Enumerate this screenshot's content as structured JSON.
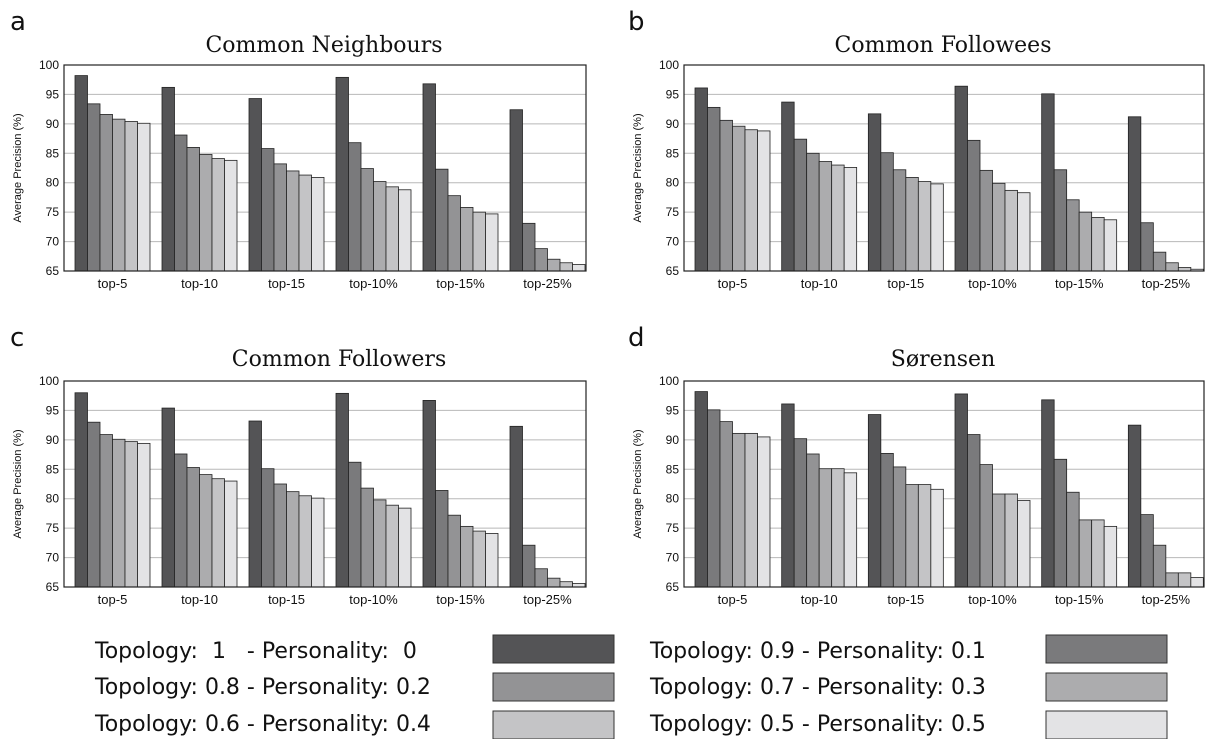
{
  "legend": [
    {
      "label": "Topology:  1   - Personality:  0",
      "color": "#545456"
    },
    {
      "label": "Topology: 0.9 - Personality: 0.1",
      "color": "#7a7a7c"
    },
    {
      "label": "Topology: 0.8 - Personality: 0.2",
      "color": "#939395"
    },
    {
      "label": "Topology: 0.7 - Personality: 0.3",
      "color": "#acacae"
    },
    {
      "label": "Topology: 0.6 - Personality: 0.4",
      "color": "#c4c4c6"
    },
    {
      "label": "Topology: 0.5 - Personality: 0.5",
      "color": "#e3e3e5"
    }
  ],
  "chart_data": [
    {
      "panel": "a",
      "type": "bar",
      "title": "Common Neighbours",
      "ylabel": "Average Precision (%)",
      "ylim": [
        65,
        100
      ],
      "yticks": [
        65,
        70,
        75,
        80,
        85,
        90,
        95,
        100
      ],
      "grid": true,
      "categories": [
        "top-5",
        "top-10",
        "top-15",
        "top-10%",
        "top-15%",
        "top-25%"
      ],
      "series": [
        {
          "name": "Topology:  1   - Personality:  0",
          "values": [
            98.2,
            96.2,
            94.3,
            97.9,
            96.8,
            92.4
          ]
        },
        {
          "name": "Topology: 0.9 - Personality: 0.1",
          "values": [
            93.4,
            88.1,
            85.8,
            86.8,
            82.3,
            73.1
          ]
        },
        {
          "name": "Topology: 0.8 - Personality: 0.2",
          "values": [
            91.6,
            86.0,
            83.2,
            82.4,
            77.8,
            68.8
          ]
        },
        {
          "name": "Topology: 0.7 - Personality: 0.3",
          "values": [
            90.8,
            84.8,
            82.0,
            80.2,
            75.8,
            67.0
          ]
        },
        {
          "name": "Topology: 0.6 - Personality: 0.4",
          "values": [
            90.4,
            84.1,
            81.3,
            79.3,
            75.0,
            66.4
          ]
        },
        {
          "name": "Topology: 0.5 - Personality: 0.5",
          "values": [
            90.1,
            83.8,
            80.9,
            78.8,
            74.7,
            66.1
          ]
        }
      ]
    },
    {
      "panel": "b",
      "type": "bar",
      "title": "Common Followees",
      "ylabel": "Average Precision (%)",
      "ylim": [
        65,
        100
      ],
      "yticks": [
        65,
        70,
        75,
        80,
        85,
        90,
        95,
        100
      ],
      "grid": true,
      "categories": [
        "top-5",
        "top-10",
        "top-15",
        "top-10%",
        "top-15%",
        "top-25%"
      ],
      "series": [
        {
          "name": "Topology:  1   - Personality:  0",
          "values": [
            96.1,
            93.7,
            91.7,
            96.4,
            95.1,
            91.2
          ]
        },
        {
          "name": "Topology: 0.9 - Personality: 0.1",
          "values": [
            92.8,
            87.4,
            85.1,
            87.2,
            82.2,
            73.2
          ]
        },
        {
          "name": "Topology: 0.8 - Personality: 0.2",
          "values": [
            90.6,
            85.0,
            82.2,
            82.1,
            77.1,
            68.2
          ]
        },
        {
          "name": "Topology: 0.7 - Personality: 0.3",
          "values": [
            89.6,
            83.6,
            80.9,
            79.9,
            75.0,
            66.4
          ]
        },
        {
          "name": "Topology: 0.6 - Personality: 0.4",
          "values": [
            89.0,
            83.0,
            80.2,
            78.7,
            74.1,
            65.6
          ]
        },
        {
          "name": "Topology: 0.5 - Personality: 0.5",
          "values": [
            88.8,
            82.6,
            79.8,
            78.3,
            73.7,
            65.3
          ]
        }
      ]
    },
    {
      "panel": "c",
      "type": "bar",
      "title": "Common Followers",
      "ylabel": "Average Precision (%)",
      "ylim": [
        65,
        100
      ],
      "yticks": [
        65,
        70,
        75,
        80,
        85,
        90,
        95,
        100
      ],
      "grid": true,
      "categories": [
        "top-5",
        "top-10",
        "top-15",
        "top-10%",
        "top-15%",
        "top-25%"
      ],
      "series": [
        {
          "name": "Topology:  1   - Personality:  0",
          "values": [
            98.0,
            95.4,
            93.2,
            97.9,
            96.7,
            92.3
          ]
        },
        {
          "name": "Topology: 0.9 - Personality: 0.1",
          "values": [
            93.0,
            87.6,
            85.1,
            86.2,
            81.4,
            72.1
          ]
        },
        {
          "name": "Topology: 0.8 - Personality: 0.2",
          "values": [
            90.9,
            85.3,
            82.5,
            81.8,
            77.2,
            68.1
          ]
        },
        {
          "name": "Topology: 0.7 - Personality: 0.3",
          "values": [
            90.1,
            84.1,
            81.2,
            79.8,
            75.3,
            66.5
          ]
        },
        {
          "name": "Topology: 0.6 - Personality: 0.4",
          "values": [
            89.7,
            83.4,
            80.5,
            78.9,
            74.5,
            65.9
          ]
        },
        {
          "name": "Topology: 0.5 - Personality: 0.5",
          "values": [
            89.4,
            83.0,
            80.1,
            78.4,
            74.1,
            65.6
          ]
        }
      ]
    },
    {
      "panel": "d",
      "type": "bar",
      "title": "Sørensen",
      "ylabel": "Average Precision (%)",
      "ylim": [
        65,
        100
      ],
      "yticks": [
        65,
        70,
        75,
        80,
        85,
        90,
        95,
        100
      ],
      "grid": true,
      "categories": [
        "top-5",
        "top-10",
        "top-15",
        "top-10%",
        "top-15%",
        "top-25%"
      ],
      "series": [
        {
          "name": "Topology:  1   - Personality:  0",
          "values": [
            98.2,
            96.1,
            94.3,
            97.8,
            96.8,
            92.5
          ]
        },
        {
          "name": "Topology: 0.9 - Personality: 0.1",
          "values": [
            95.1,
            90.2,
            87.7,
            90.9,
            86.7,
            77.3
          ]
        },
        {
          "name": "Topology: 0.8 - Personality: 0.2",
          "values": [
            93.1,
            87.6,
            85.4,
            85.8,
            81.1,
            72.1
          ]
        },
        {
          "name": "Topology: 0.7 - Personality: 0.3",
          "values": [
            91.1,
            85.1,
            82.4,
            80.8,
            76.4,
            67.4
          ]
        },
        {
          "name": "Topology: 0.6 - Personality: 0.4",
          "values": [
            91.1,
            85.1,
            82.4,
            80.8,
            76.4,
            67.4
          ]
        },
        {
          "name": "Topology: 0.5 - Personality: 0.5",
          "values": [
            90.5,
            84.4,
            81.6,
            79.7,
            75.3,
            66.6
          ]
        }
      ]
    }
  ]
}
